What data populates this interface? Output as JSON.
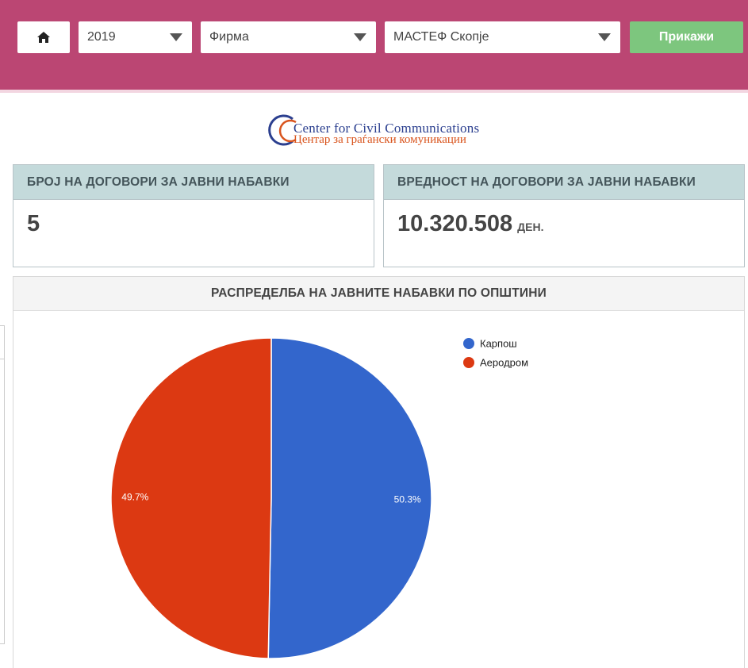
{
  "filters": {
    "home_icon": "home-icon",
    "year": "2019",
    "entity_type": "Фирма",
    "firm": "МАСТЕФ Скопје",
    "show_label": "Прикажи"
  },
  "logo": {
    "english": "Center for Civil Communications",
    "macedonian": "Центар за граѓански комуникации"
  },
  "cards": {
    "count": {
      "title": "БРОЈ НА ДОГОВОРИ ЗА ЈАВНИ НАБАВКИ",
      "value": "5"
    },
    "value": {
      "title": "ВРЕДНОСТ НА ДОГОВОРИ ЗА ЈАВНИ НАБАВКИ",
      "value": "10.320.508",
      "unit": "ДЕН."
    }
  },
  "chart_data": {
    "type": "pie",
    "title": "РАСПРЕДЕЛБА НА ЈАВНИТЕ НАБАВКИ ПО ОПШТИНИ",
    "legend_position": "top-right",
    "slices": [
      {
        "label": "Карпош",
        "value": 50.3,
        "display": "50.3%",
        "color": "#3366cc"
      },
      {
        "label": "Аеродром",
        "value": 49.7,
        "display": "49.7%",
        "color": "#dc3912"
      }
    ]
  }
}
